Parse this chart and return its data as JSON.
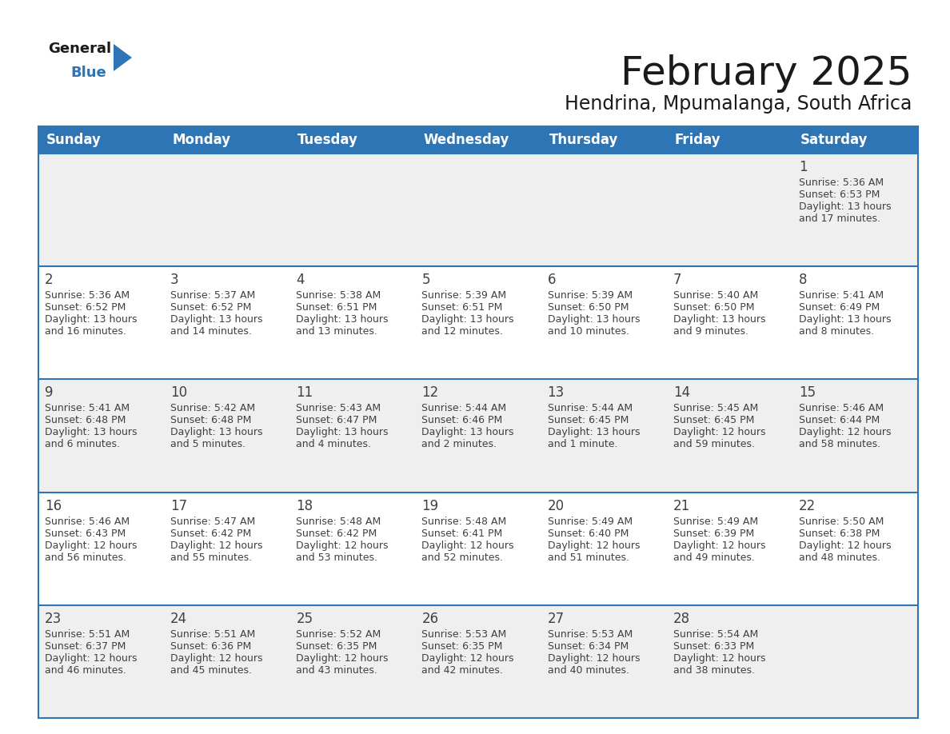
{
  "title": "February 2025",
  "subtitle": "Hendrina, Mpumalanga, South Africa",
  "header_color": "#2e75b6",
  "header_text_color": "#ffffff",
  "cell_bg_white": "#ffffff",
  "cell_bg_gray": "#efefef",
  "border_color": "#2e75b6",
  "text_color": "#404040",
  "day_headers": [
    "Sunday",
    "Monday",
    "Tuesday",
    "Wednesday",
    "Thursday",
    "Friday",
    "Saturday"
  ],
  "title_fontsize": 36,
  "subtitle_fontsize": 17,
  "header_fontsize": 12,
  "cell_fontsize": 9,
  "day_num_fontsize": 12,
  "calendar": [
    [
      {
        "day": "",
        "sunrise": "",
        "sunset": "",
        "daylight": ""
      },
      {
        "day": "",
        "sunrise": "",
        "sunset": "",
        "daylight": ""
      },
      {
        "day": "",
        "sunrise": "",
        "sunset": "",
        "daylight": ""
      },
      {
        "day": "",
        "sunrise": "",
        "sunset": "",
        "daylight": ""
      },
      {
        "day": "",
        "sunrise": "",
        "sunset": "",
        "daylight": ""
      },
      {
        "day": "",
        "sunrise": "",
        "sunset": "",
        "daylight": ""
      },
      {
        "day": "1",
        "sunrise": "5:36 AM",
        "sunset": "6:53 PM",
        "daylight": "13 hours\nand 17 minutes."
      }
    ],
    [
      {
        "day": "2",
        "sunrise": "5:36 AM",
        "sunset": "6:52 PM",
        "daylight": "13 hours\nand 16 minutes."
      },
      {
        "day": "3",
        "sunrise": "5:37 AM",
        "sunset": "6:52 PM",
        "daylight": "13 hours\nand 14 minutes."
      },
      {
        "day": "4",
        "sunrise": "5:38 AM",
        "sunset": "6:51 PM",
        "daylight": "13 hours\nand 13 minutes."
      },
      {
        "day": "5",
        "sunrise": "5:39 AM",
        "sunset": "6:51 PM",
        "daylight": "13 hours\nand 12 minutes."
      },
      {
        "day": "6",
        "sunrise": "5:39 AM",
        "sunset": "6:50 PM",
        "daylight": "13 hours\nand 10 minutes."
      },
      {
        "day": "7",
        "sunrise": "5:40 AM",
        "sunset": "6:50 PM",
        "daylight": "13 hours\nand 9 minutes."
      },
      {
        "day": "8",
        "sunrise": "5:41 AM",
        "sunset": "6:49 PM",
        "daylight": "13 hours\nand 8 minutes."
      }
    ],
    [
      {
        "day": "9",
        "sunrise": "5:41 AM",
        "sunset": "6:48 PM",
        "daylight": "13 hours\nand 6 minutes."
      },
      {
        "day": "10",
        "sunrise": "5:42 AM",
        "sunset": "6:48 PM",
        "daylight": "13 hours\nand 5 minutes."
      },
      {
        "day": "11",
        "sunrise": "5:43 AM",
        "sunset": "6:47 PM",
        "daylight": "13 hours\nand 4 minutes."
      },
      {
        "day": "12",
        "sunrise": "5:44 AM",
        "sunset": "6:46 PM",
        "daylight": "13 hours\nand 2 minutes."
      },
      {
        "day": "13",
        "sunrise": "5:44 AM",
        "sunset": "6:45 PM",
        "daylight": "13 hours\nand 1 minute."
      },
      {
        "day": "14",
        "sunrise": "5:45 AM",
        "sunset": "6:45 PM",
        "daylight": "12 hours\nand 59 minutes."
      },
      {
        "day": "15",
        "sunrise": "5:46 AM",
        "sunset": "6:44 PM",
        "daylight": "12 hours\nand 58 minutes."
      }
    ],
    [
      {
        "day": "16",
        "sunrise": "5:46 AM",
        "sunset": "6:43 PM",
        "daylight": "12 hours\nand 56 minutes."
      },
      {
        "day": "17",
        "sunrise": "5:47 AM",
        "sunset": "6:42 PM",
        "daylight": "12 hours\nand 55 minutes."
      },
      {
        "day": "18",
        "sunrise": "5:48 AM",
        "sunset": "6:42 PM",
        "daylight": "12 hours\nand 53 minutes."
      },
      {
        "day": "19",
        "sunrise": "5:48 AM",
        "sunset": "6:41 PM",
        "daylight": "12 hours\nand 52 minutes."
      },
      {
        "day": "20",
        "sunrise": "5:49 AM",
        "sunset": "6:40 PM",
        "daylight": "12 hours\nand 51 minutes."
      },
      {
        "day": "21",
        "sunrise": "5:49 AM",
        "sunset": "6:39 PM",
        "daylight": "12 hours\nand 49 minutes."
      },
      {
        "day": "22",
        "sunrise": "5:50 AM",
        "sunset": "6:38 PM",
        "daylight": "12 hours\nand 48 minutes."
      }
    ],
    [
      {
        "day": "23",
        "sunrise": "5:51 AM",
        "sunset": "6:37 PM",
        "daylight": "12 hours\nand 46 minutes."
      },
      {
        "day": "24",
        "sunrise": "5:51 AM",
        "sunset": "6:36 PM",
        "daylight": "12 hours\nand 45 minutes."
      },
      {
        "day": "25",
        "sunrise": "5:52 AM",
        "sunset": "6:35 PM",
        "daylight": "12 hours\nand 43 minutes."
      },
      {
        "day": "26",
        "sunrise": "5:53 AM",
        "sunset": "6:35 PM",
        "daylight": "12 hours\nand 42 minutes."
      },
      {
        "day": "27",
        "sunrise": "5:53 AM",
        "sunset": "6:34 PM",
        "daylight": "12 hours\nand 40 minutes."
      },
      {
        "day": "28",
        "sunrise": "5:54 AM",
        "sunset": "6:33 PM",
        "daylight": "12 hours\nand 38 minutes."
      },
      {
        "day": "",
        "sunrise": "",
        "sunset": "",
        "daylight": ""
      }
    ]
  ]
}
